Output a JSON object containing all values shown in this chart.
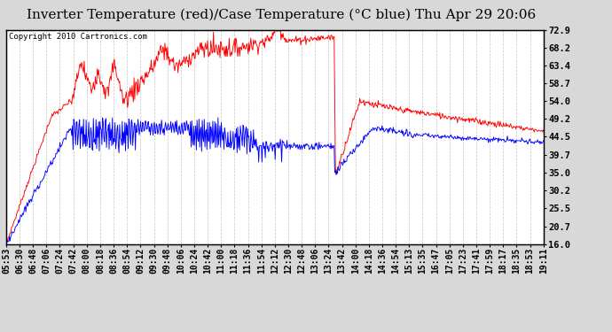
{
  "title": "Inverter Temperature (red)/Case Temperature (°C blue) Thu Apr 29 20:06",
  "copyright": "Copyright 2010 Cartronics.com",
  "ylabel_right_values": [
    72.9,
    68.2,
    63.4,
    58.7,
    54.0,
    49.2,
    44.5,
    39.7,
    35.0,
    30.2,
    25.5,
    20.7,
    16.0
  ],
  "ylim": [
    16.0,
    72.9
  ],
  "background_color": "#d8d8d8",
  "plot_bg_color": "#ffffff",
  "grid_color": "#aaaaaa",
  "red_line_color": "#ff0000",
  "blue_line_color": "#0000ff",
  "title_fontsize": 11,
  "copyright_fontsize": 6.5,
  "tick_fontsize": 7,
  "x_tick_labels": [
    "05:53",
    "06:30",
    "06:48",
    "07:06",
    "07:24",
    "07:42",
    "08:00",
    "08:18",
    "08:36",
    "08:54",
    "09:12",
    "09:30",
    "09:48",
    "10:06",
    "10:24",
    "10:42",
    "11:00",
    "11:18",
    "11:36",
    "11:54",
    "12:12",
    "12:30",
    "12:48",
    "13:06",
    "13:24",
    "13:42",
    "14:00",
    "14:18",
    "14:36",
    "14:54",
    "15:13",
    "15:35",
    "16:47",
    "17:05",
    "17:23",
    "17:41",
    "17:59",
    "18:17",
    "18:35",
    "18:53",
    "19:11"
  ]
}
